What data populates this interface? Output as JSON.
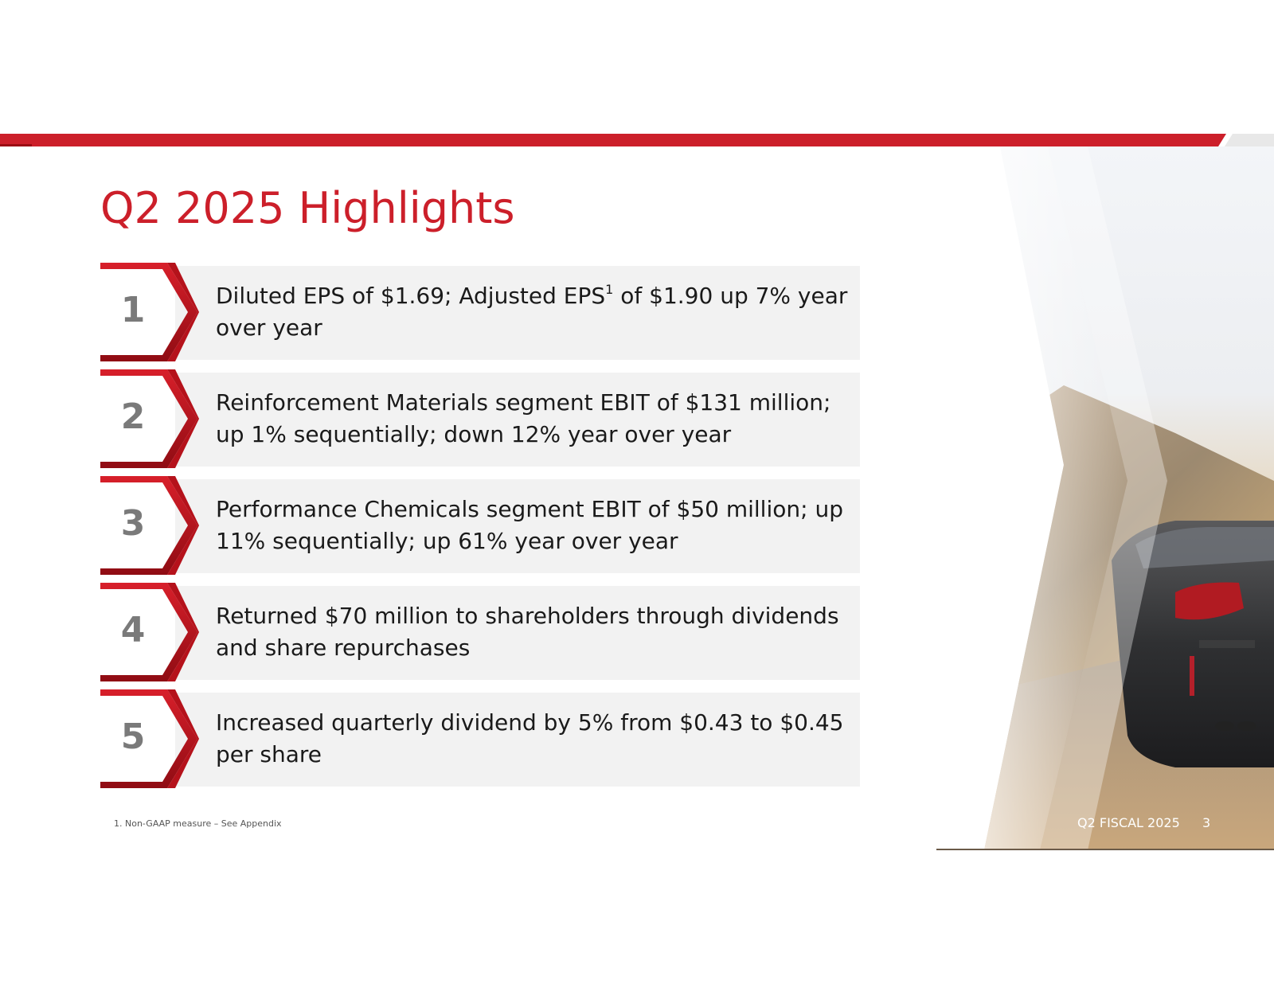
{
  "slide": {
    "title": "Q2 2025 Highlights",
    "highlights": [
      {
        "number": "1",
        "text_before": "Diluted EPS of $1.69; Adjusted EPS",
        "footnote_mark": "1",
        "text_after": " of $1.90 up 7% year over year"
      },
      {
        "number": "2",
        "text": "Reinforcement Materials segment EBIT of $131 million; up 1% sequentially; down 12% year over year"
      },
      {
        "number": "3",
        "text": "Performance Chemicals segment EBIT of $50 million; up 11% sequentially; up 61% year over year"
      },
      {
        "number": "4",
        "text": "Returned $70 million to shareholders through dividends and share repurchases"
      },
      {
        "number": "5",
        "text": "Increased quarterly dividend by 5% from $0.43 to $0.45 per share"
      }
    ],
    "footnote": "1. Non-GAAP measure – See Appendix",
    "footer_label": "Q2 FISCAL 2025",
    "page_number": "3"
  },
  "colors": {
    "accent_red": "#cc1f2a",
    "dark_red": "#9b0d14",
    "number_gray": "#7a7a7a",
    "box_gray": "#f2f2f2"
  },
  "icons": {
    "chevron": "chevron-right-icon",
    "photo": "car-on-road-photo"
  }
}
